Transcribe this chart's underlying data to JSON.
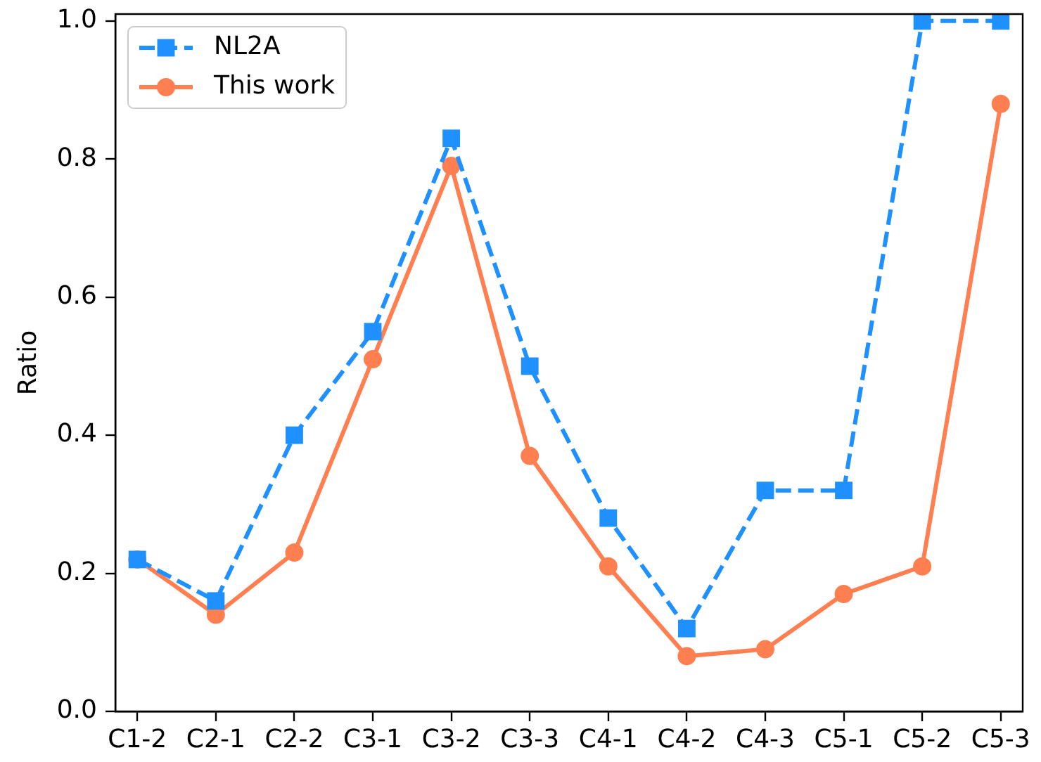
{
  "chart_data": {
    "type": "line",
    "ylabel": "Ratio",
    "categories": [
      "C1-2",
      "C2-1",
      "C2-2",
      "C3-1",
      "C3-2",
      "C3-3",
      "C4-1",
      "C4-2",
      "C4-3",
      "C5-1",
      "C5-2",
      "C5-3"
    ],
    "series": [
      {
        "name": "NL2A",
        "color": "#1e90ff",
        "marker": "square",
        "line_style": "dashed",
        "values": [
          0.22,
          0.16,
          0.4,
          0.55,
          0.83,
          0.5,
          0.28,
          0.12,
          0.32,
          0.32,
          1.0,
          1.0
        ]
      },
      {
        "name": "This work",
        "color": "#ff7f50",
        "marker": "circle",
        "line_style": "solid",
        "values": [
          0.22,
          0.14,
          0.23,
          0.51,
          0.79,
          0.37,
          0.21,
          0.08,
          0.09,
          0.17,
          0.21,
          0.88
        ]
      }
    ],
    "ylim": [
      0,
      1.01
    ],
    "yticks": [
      {
        "value": 0,
        "label": "0.0"
      },
      0.2,
      0.4,
      0.6,
      0.8,
      {
        "value": 1,
        "label": "1.0"
      }
    ],
    "grid": false,
    "legend": "top left"
  }
}
